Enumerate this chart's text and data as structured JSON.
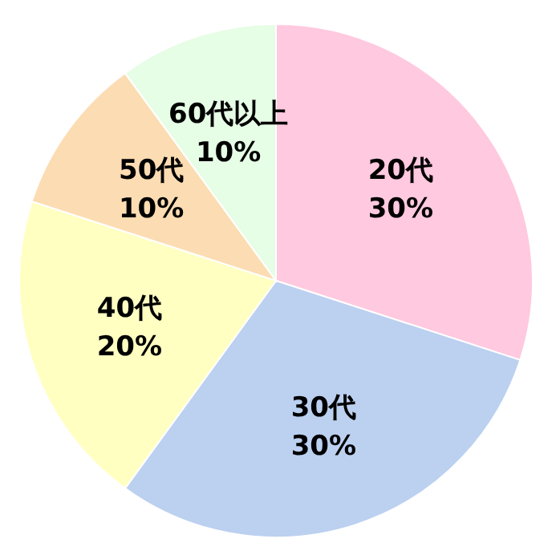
{
  "chart_data": {
    "type": "pie",
    "categories": [
      "20代",
      "30代",
      "40代",
      "50代",
      "60代以上"
    ],
    "values": [
      30,
      30,
      20,
      10,
      10
    ],
    "value_labels": [
      "30%",
      "30%",
      "20%",
      "10%",
      "10%"
    ],
    "colors": [
      "#ffc9df",
      "#bcd0f0",
      "#ffffc2",
      "#fcdcb2",
      "#e6fde6"
    ]
  }
}
